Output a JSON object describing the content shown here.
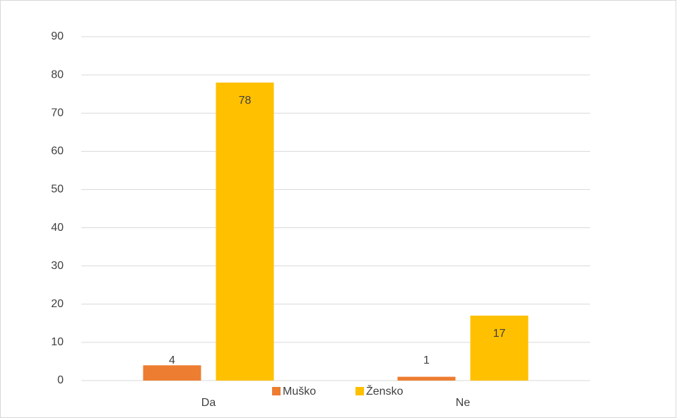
{
  "chart_data": {
    "type": "bar",
    "categories": [
      "Da",
      "Ne"
    ],
    "series": [
      {
        "name": "Muško",
        "color": "#ed7d31",
        "values": [
          4,
          1
        ]
      },
      {
        "name": "Žensko",
        "color": "#ffc000",
        "values": [
          78,
          17
        ]
      }
    ],
    "ylim": [
      0,
      90
    ],
    "yticks": [
      0,
      10,
      20,
      30,
      40,
      50,
      60,
      70,
      80,
      90
    ],
    "grid": true,
    "legend": "bottom",
    "data_labels": true
  }
}
